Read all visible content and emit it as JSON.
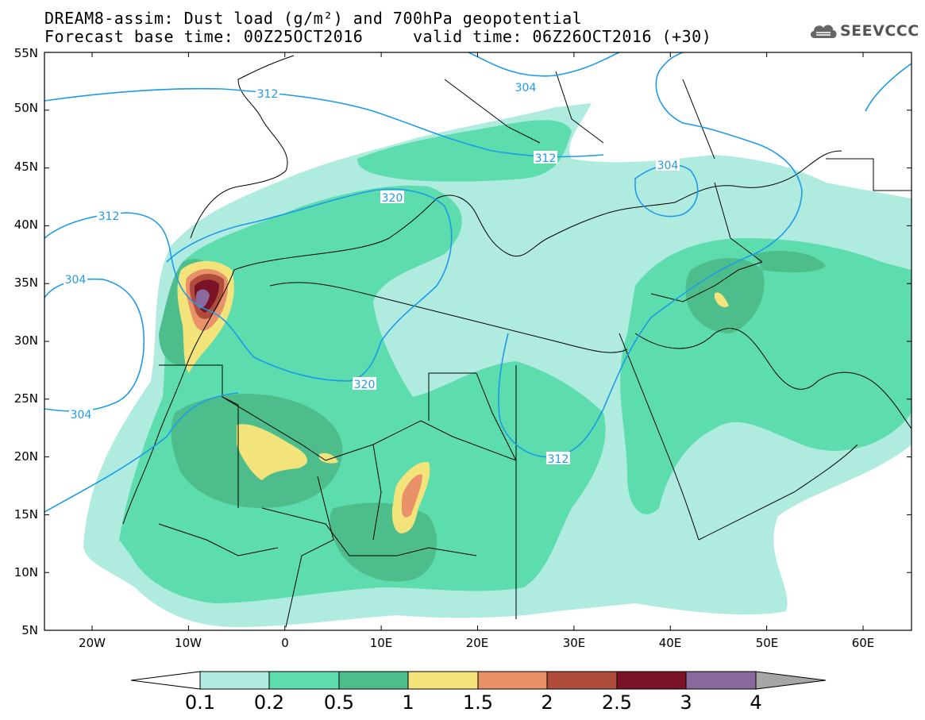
{
  "title": {
    "line1": "DREAM8-assim: Dust load (g/m²) and 700hPa geopotential",
    "line2": "Forecast base time: 00Z25OCT2016     valid time: 06Z26OCT2016 (+30)"
  },
  "logo": {
    "text": "SEEVCCC",
    "icon": "cloud-icon"
  },
  "map": {
    "lat_labels": [
      "55N",
      "50N",
      "45N",
      "40N",
      "35N",
      "30N",
      "25N",
      "20N",
      "15N",
      "10N",
      "5N"
    ],
    "lon_labels": [
      "20W",
      "10W",
      "0",
      "10E",
      "20E",
      "30E",
      "40E",
      "50E",
      "60E"
    ],
    "contour_labels": [
      "312",
      "304",
      "312",
      "304",
      "320",
      "312",
      "304",
      "304",
      "320",
      "312"
    ],
    "contour_color": "#1e9be8"
  },
  "colorbar": {
    "levels": [
      "0.1",
      "0.2",
      "0.5",
      "1",
      "1.5",
      "2",
      "2.5",
      "3",
      "4"
    ],
    "colors": [
      "#ffffff",
      "#b0ebe0",
      "#5ddcae",
      "#4ebd8c",
      "#f2e47a",
      "#e99168",
      "#b04c3c",
      "#7a1326",
      "#8a6a9e",
      "#a6a6a6"
    ]
  }
}
